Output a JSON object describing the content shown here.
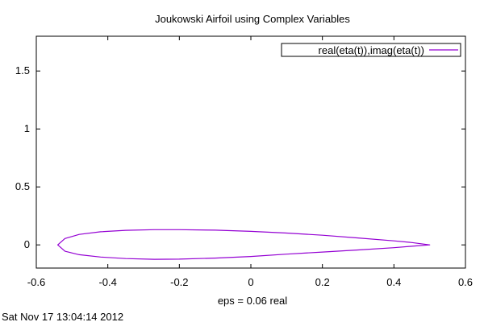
{
  "chart_data": {
    "type": "line",
    "title": "Joukowski Airfoil using Complex Variables",
    "xlabel": "eps = 0.06 real",
    "ylabel": "",
    "xlim": [
      -0.6,
      0.6
    ],
    "ylim": [
      -0.2,
      1.8
    ],
    "x_ticks": [
      -0.6,
      -0.4,
      -0.2,
      0,
      0.2,
      0.4,
      0.6
    ],
    "x_tick_labels": [
      "-0.6",
      "-0.4",
      "-0.2",
      "0",
      "0.2",
      "0.4",
      "0.6"
    ],
    "y_ticks": [
      0,
      0.5,
      1,
      1.5
    ],
    "y_tick_labels": [
      "0",
      "0.5",
      "1",
      "1.5"
    ],
    "grid": false,
    "legend_position": "top-right",
    "series": [
      {
        "name": "real(eta(t)),imag(eta(t))",
        "color": "#9400d3",
        "x": [
          0.5,
          0.45,
          0.4,
          0.3,
          0.2,
          0.1,
          0.0,
          -0.1,
          -0.2,
          -0.27,
          -0.35,
          -0.42,
          -0.48,
          -0.52,
          -0.54,
          -0.52,
          -0.48,
          -0.42,
          -0.35,
          -0.27,
          -0.2,
          -0.1,
          0.0,
          0.1,
          0.2,
          0.3,
          0.4,
          0.45,
          0.5
        ],
        "y": [
          0.0,
          0.02,
          0.035,
          0.06,
          0.083,
          0.102,
          0.117,
          0.127,
          0.131,
          0.131,
          0.126,
          0.113,
          0.09,
          0.055,
          0.0,
          -0.055,
          -0.085,
          -0.105,
          -0.118,
          -0.124,
          -0.123,
          -0.114,
          -0.1,
          -0.08,
          -0.062,
          -0.044,
          -0.024,
          -0.012,
          0.0
        ]
      }
    ]
  },
  "footer": {
    "timestamp": "Sat Nov 17 13:04:14 2012"
  }
}
